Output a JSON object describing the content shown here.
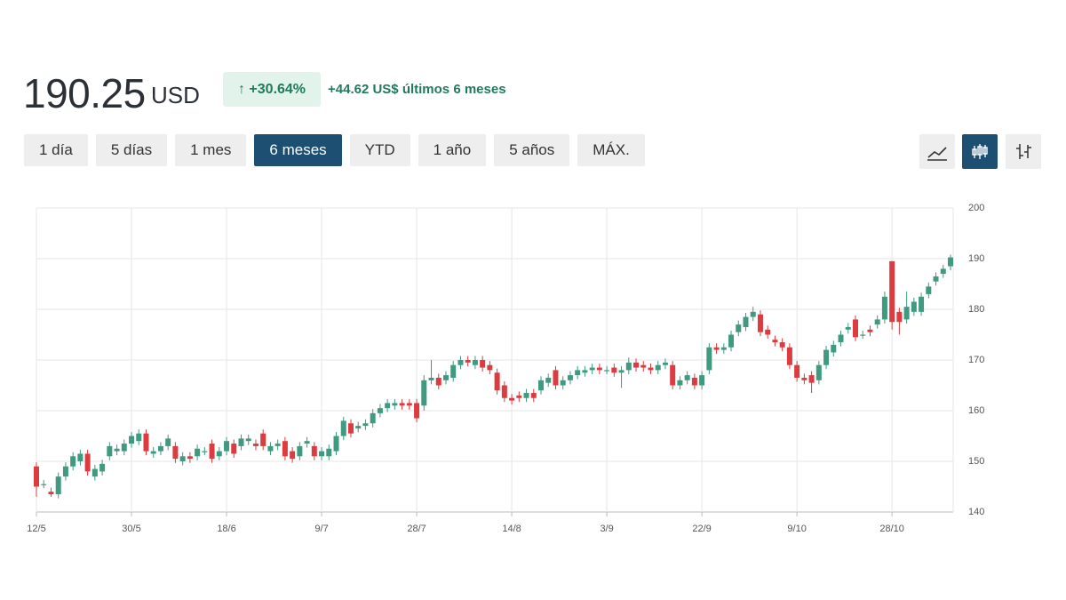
{
  "header": {
    "price": "190.25",
    "currency": "USD",
    "change_pct": "+30.64%",
    "change_abs": "+44.62",
    "change_text": "US$ últimos 6 meses"
  },
  "ranges": {
    "buttons": [
      "1 día",
      "5 días",
      "1 mes",
      "6 meses",
      "YTD",
      "1 año",
      "5 años",
      "MÁX."
    ],
    "selected": 3
  },
  "chart_data": {
    "type": "candlestick",
    "categories": [
      "12/5",
      null,
      null,
      null,
      null,
      null,
      null,
      null,
      null,
      null,
      null,
      null,
      null,
      "30/5",
      null,
      null,
      null,
      null,
      null,
      null,
      null,
      null,
      null,
      null,
      null,
      null,
      "18/6",
      null,
      null,
      null,
      null,
      null,
      null,
      null,
      null,
      null,
      null,
      null,
      null,
      "9/7",
      null,
      null,
      null,
      null,
      null,
      null,
      null,
      null,
      null,
      null,
      null,
      null,
      "28/7",
      null,
      null,
      null,
      null,
      null,
      null,
      null,
      null,
      null,
      null,
      null,
      null,
      "14/8",
      null,
      null,
      null,
      null,
      null,
      null,
      null,
      null,
      null,
      null,
      null,
      null,
      "3/9",
      null,
      null,
      null,
      null,
      null,
      null,
      null,
      null,
      null,
      null,
      null,
      null,
      "22/9",
      null,
      null,
      null,
      null,
      null,
      null,
      null,
      null,
      null,
      null,
      null,
      null,
      "9/10",
      null,
      null,
      null,
      null,
      null,
      null,
      null,
      null,
      null,
      null,
      null,
      null,
      "28/10",
      null,
      null,
      null,
      null,
      null,
      null,
      null,
      null
    ],
    "open": [
      149,
      145.5,
      144,
      143.5,
      147,
      149,
      150,
      151.5,
      147,
      148,
      151,
      152,
      152,
      153.5,
      154,
      155.5,
      151.5,
      152,
      153,
      153,
      150,
      151,
      151,
      152,
      153.5,
      151,
      152,
      153.5,
      153,
      154,
      153.5,
      155.5,
      152,
      153,
      154,
      152,
      151,
      153.5,
      153,
      151,
      151,
      152,
      155,
      157.5,
      156.5,
      157,
      157.5,
      159.5,
      160.5,
      161,
      161.5,
      161.5,
      161.5,
      161,
      166,
      166.5,
      166,
      166.5,
      169,
      170,
      169,
      170,
      169,
      167.5,
      165,
      162.5,
      163,
      162.5,
      163.5,
      164,
      165.5,
      168,
      165,
      166,
      167,
      167.5,
      168,
      168.5,
      168,
      168.5,
      167.5,
      168,
      169.5,
      169,
      168.5,
      168,
      169,
      169,
      165,
      166,
      166.5,
      165,
      168,
      172.5,
      172,
      172.5,
      175.5,
      176.5,
      178.5,
      179,
      176,
      174,
      173.5,
      172.5,
      169,
      166.5,
      167,
      166,
      169,
      171.5,
      173.5,
      176,
      178,
      175,
      176,
      177,
      178,
      189.5,
      179.5,
      178,
      179.5,
      179.5,
      183,
      185.5,
      187,
      188.5
    ],
    "high": [
      149.8,
      146.3,
      144.8,
      147.8,
      149.8,
      151.8,
      152.3,
      152.3,
      149.3,
      150.3,
      153.8,
      153.3,
      154.3,
      155.8,
      156.3,
      156.3,
      152.8,
      153.8,
      155.3,
      153.8,
      151.8,
      151.8,
      153.3,
      152.8,
      154.3,
      152.8,
      154.8,
      154.3,
      155.3,
      155.3,
      154.3,
      156.3,
      153.8,
      154.3,
      154.8,
      152.8,
      153.8,
      154.8,
      153.8,
      152.8,
      153.3,
      155.8,
      158.8,
      158.3,
      157.8,
      158.3,
      160.3,
      161.3,
      162.3,
      162.3,
      162.3,
      162.3,
      162.3,
      167,
      170,
      167.3,
      167.8,
      169.8,
      170.8,
      170.8,
      170.8,
      170.8,
      169.8,
      168.3,
      165.8,
      163.3,
      163.8,
      164.3,
      164.3,
      166.8,
      167.3,
      168.8,
      166.8,
      167.8,
      168.8,
      168.8,
      169.3,
      169.3,
      168.8,
      169.3,
      168.8,
      170.5,
      170.3,
      169.8,
      169.3,
      169.8,
      170.3,
      169.8,
      166.8,
      167.8,
      167.3,
      167.8,
      173.3,
      173.3,
      173.3,
      175.8,
      177.8,
      179.3,
      180.5,
      179.8,
      176.8,
      174.8,
      174.3,
      173.3,
      169.8,
      167.3,
      167.8,
      169.8,
      172.8,
      173.8,
      175.8,
      177.3,
      178.8,
      175.8,
      176.8,
      178.8,
      183.5,
      189.5,
      180.3,
      183.5,
      182.3,
      183.3,
      185.3,
      187.3,
      188.8,
      190.8
    ],
    "low": [
      143,
      144.7,
      143,
      142.7,
      146.2,
      148.2,
      149.2,
      147.2,
      146.2,
      147.2,
      150.2,
      151.2,
      151.2,
      152.7,
      153.2,
      151.2,
      150.7,
      151.2,
      152.2,
      149.7,
      149.2,
      149.7,
      150.2,
      151.2,
      149.7,
      150.2,
      151.2,
      150.7,
      152.2,
      153.2,
      152.2,
      152.2,
      151.2,
      152.2,
      150.2,
      149.7,
      150.2,
      152.7,
      150.2,
      150.2,
      150.2,
      151.2,
      154.2,
      154.7,
      155.7,
      156.2,
      156.7,
      158.7,
      159.7,
      160.2,
      160.2,
      160.2,
      157.7,
      160,
      165.2,
      164.2,
      165.2,
      165.7,
      168.2,
      168.7,
      168.2,
      167.7,
      167.2,
      163.2,
      161.7,
      161.2,
      161.7,
      161.7,
      161.7,
      163.2,
      164.7,
      164.2,
      164.2,
      165.2,
      166.2,
      166.7,
      167.2,
      167.2,
      167.2,
      166.7,
      164.5,
      167.2,
      167.7,
      167.7,
      167.2,
      167.2,
      168.2,
      164.2,
      164.2,
      165.2,
      164.2,
      164.2,
      167.2,
      171.2,
      171.2,
      171.7,
      174.7,
      175.7,
      177.7,
      174.7,
      174.2,
      172.7,
      171.7,
      168.2,
      165.7,
      165.2,
      163.5,
      165.2,
      168.2,
      170.7,
      172.7,
      175.2,
      173.7,
      174.2,
      174.7,
      176.2,
      177.2,
      176,
      175,
      177.2,
      178.7,
      178.7,
      182.2,
      184.7,
      186.2,
      187.7
    ],
    "close": [
      145,
      145.5,
      143.5,
      147,
      149,
      151,
      151.5,
      148,
      148.5,
      149.5,
      153,
      152.5,
      153.5,
      155,
      155.5,
      152,
      152,
      153,
      154.5,
      150.5,
      151,
      150.5,
      152.5,
      152,
      150.5,
      152,
      154,
      151.5,
      154.5,
      154.5,
      153,
      153,
      153,
      153.5,
      151,
      150.5,
      153,
      154,
      151,
      152,
      152.5,
      155,
      158,
      155.5,
      157,
      157.5,
      159.5,
      160.5,
      161.5,
      161.5,
      161,
      161,
      158.5,
      166,
      166.5,
      165,
      167,
      169,
      170,
      169.5,
      170,
      168.5,
      168,
      164,
      162.5,
      162,
      162.5,
      163.5,
      162.5,
      166,
      166.5,
      165,
      166,
      167,
      168,
      168,
      168.5,
      168,
      168,
      167.5,
      168,
      169.5,
      168.5,
      168.5,
      168,
      169,
      169.5,
      165,
      166,
      167,
      165,
      167,
      172.5,
      172,
      172.5,
      175,
      177,
      178.5,
      179.5,
      175.5,
      175,
      173.5,
      172.5,
      169,
      166.5,
      166,
      165.5,
      169,
      172,
      173,
      175,
      176.5,
      174.5,
      175,
      175.5,
      178,
      182.5,
      177.5,
      177.5,
      180.5,
      181.5,
      182.5,
      184.5,
      186.5,
      188,
      190.25
    ],
    "up_color": "#3f9a7f",
    "down_color": "#dc3b3f",
    "ylim": [
      140,
      200
    ],
    "yticks": [
      140,
      150,
      160,
      170,
      180,
      190,
      200
    ],
    "grid": true
  }
}
